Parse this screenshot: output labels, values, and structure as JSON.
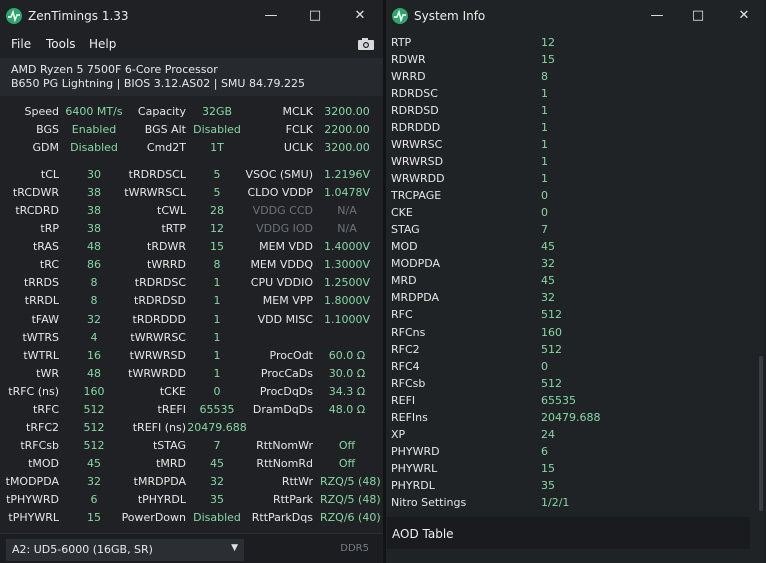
{
  "zt": {
    "title": "ZenTimings 1.33",
    "menu": [
      "File",
      "Tools",
      "Help"
    ],
    "cpu": "AMD Ryzen 5 7500F 6-Core Processor",
    "board": "B650 PG Lightning | BIOS 3.12.AS02 | SMU 84.79.225",
    "top": [
      [
        [
          "Speed",
          "6400 MT/s"
        ],
        [
          "Capacity",
          "32GB"
        ],
        [
          "MCLK",
          "3200.00"
        ]
      ],
      [
        [
          "BGS",
          "Enabled"
        ],
        [
          "BGS Alt",
          "Disabled"
        ],
        [
          "FCLK",
          "2200.00"
        ]
      ],
      [
        [
          "GDM",
          "Disabled"
        ],
        [
          "Cmd2T",
          "1T"
        ],
        [
          "UCLK",
          "3200.00"
        ]
      ]
    ],
    "timings": [
      [
        [
          "tCL",
          "30"
        ],
        [
          "tRDRDSCL",
          "5"
        ],
        [
          "VSOC (SMU)",
          "1.2196V"
        ]
      ],
      [
        [
          "tRCDWR",
          "38"
        ],
        [
          "tWRWRSCL",
          "5"
        ],
        [
          "CLDO VDDP",
          "1.0478V"
        ]
      ],
      [
        [
          "tRCDRD",
          "38"
        ],
        [
          "tCWL",
          "28"
        ],
        [
          "VDDG CCD",
          "N/A"
        ]
      ],
      [
        [
          "tRP",
          "38"
        ],
        [
          "tRTP",
          "12"
        ],
        [
          "VDDG IOD",
          "N/A"
        ]
      ],
      [
        [
          "tRAS",
          "48"
        ],
        [
          "tRDWR",
          "15"
        ],
        [
          "MEM VDD",
          "1.4000V"
        ]
      ],
      [
        [
          "tRC",
          "86"
        ],
        [
          "tWRRD",
          "8"
        ],
        [
          "MEM VDDQ",
          "1.3000V"
        ]
      ],
      [
        [
          "tRRDS",
          "8"
        ],
        [
          "tRDRDSC",
          "1"
        ],
        [
          "CPU VDDIO",
          "1.2500V"
        ]
      ],
      [
        [
          "tRRDL",
          "8"
        ],
        [
          "tRDRDSD",
          "1"
        ],
        [
          "MEM VPP",
          "1.8000V"
        ]
      ],
      [
        [
          "tFAW",
          "32"
        ],
        [
          "tRDRDDD",
          "1"
        ],
        [
          "VDD MISC",
          "1.1000V"
        ]
      ],
      [
        [
          "tWTRS",
          "4"
        ],
        [
          "tWRWRSC",
          "1"
        ],
        [
          "",
          ""
        ]
      ],
      [
        [
          "tWTRL",
          "16"
        ],
        [
          "tWRWRSD",
          "1"
        ],
        [
          "ProcOdt",
          "60.0 Ω"
        ]
      ],
      [
        [
          "tWR",
          "48"
        ],
        [
          "tWRWRDD",
          "1"
        ],
        [
          "ProcCaDs",
          "30.0 Ω"
        ]
      ],
      [
        [
          "tRFC (ns)",
          "160"
        ],
        [
          "tCKE",
          "0"
        ],
        [
          "ProcDqDs",
          "34.3 Ω"
        ]
      ],
      [
        [
          "tRFC",
          "512"
        ],
        [
          "tREFI",
          "65535"
        ],
        [
          "DramDqDs",
          "48.0 Ω"
        ]
      ],
      [
        [
          "tRFC2",
          "512"
        ],
        [
          "tREFI (ns)",
          "20479.688"
        ],
        [
          "",
          ""
        ]
      ],
      [
        [
          "tRFCsb",
          "512"
        ],
        [
          "tSTAG",
          "7"
        ],
        [
          "RttNomWr",
          "Off"
        ]
      ],
      [
        [
          "tMOD",
          "45"
        ],
        [
          "tMRD",
          "45"
        ],
        [
          "RttNomRd",
          "Off"
        ]
      ],
      [
        [
          "tMODPDA",
          "32"
        ],
        [
          "tMRDPDA",
          "32"
        ],
        [
          "RttWr",
          "RZQ/5 (48)"
        ]
      ],
      [
        [
          "tPHYWRD",
          "6"
        ],
        [
          "tPHYRDL",
          "35"
        ],
        [
          "RttPark",
          "RZQ/5 (48)"
        ]
      ],
      [
        [
          "tPHYWRL",
          "15"
        ],
        [
          "PowerDown",
          "Disabled"
        ],
        [
          "RttParkDqs",
          "RZQ/6 (40)"
        ]
      ]
    ],
    "dimm_select": "A2: UD5-6000 (16GB, SR)",
    "mem_type": "DDR5"
  },
  "si": {
    "title": "System Info",
    "rows": [
      [
        "RTP",
        "12"
      ],
      [
        "RDWR",
        "15"
      ],
      [
        "WRRD",
        "8"
      ],
      [
        "RDRDSC",
        "1"
      ],
      [
        "RDRDSD",
        "1"
      ],
      [
        "RDRDDD",
        "1"
      ],
      [
        "WRWRSC",
        "1"
      ],
      [
        "WRWRSD",
        "1"
      ],
      [
        "WRWRDD",
        "1"
      ],
      [
        "TRCPAGE",
        "0"
      ],
      [
        "CKE",
        "0"
      ],
      [
        "STAG",
        "7"
      ],
      [
        "MOD",
        "45"
      ],
      [
        "MODPDA",
        "32"
      ],
      [
        "MRD",
        "45"
      ],
      [
        "MRDPDA",
        "32"
      ],
      [
        "RFC",
        "512"
      ],
      [
        "RFCns",
        "160"
      ],
      [
        "RFC2",
        "512"
      ],
      [
        "RFC4",
        "0"
      ],
      [
        "RFCsb",
        "512"
      ],
      [
        "REFI",
        "65535"
      ],
      [
        "REFIns",
        "20479.688"
      ],
      [
        "XP",
        "24"
      ],
      [
        "PHYWRD",
        "6"
      ],
      [
        "PHYWRL",
        "15"
      ],
      [
        "PHYRDL",
        "35"
      ],
      [
        "Nitro Settings",
        "1/2/1"
      ]
    ],
    "aod_label": "AOD Table"
  },
  "colors": {
    "value": "#86d8a4",
    "dim": "#6e7378",
    "icon": "#2ea56b"
  },
  "icons": [
    "zentimings-logo-icon",
    "minimize-icon",
    "maximize-icon",
    "close-icon",
    "camera-icon",
    "chevron-down-icon"
  ]
}
